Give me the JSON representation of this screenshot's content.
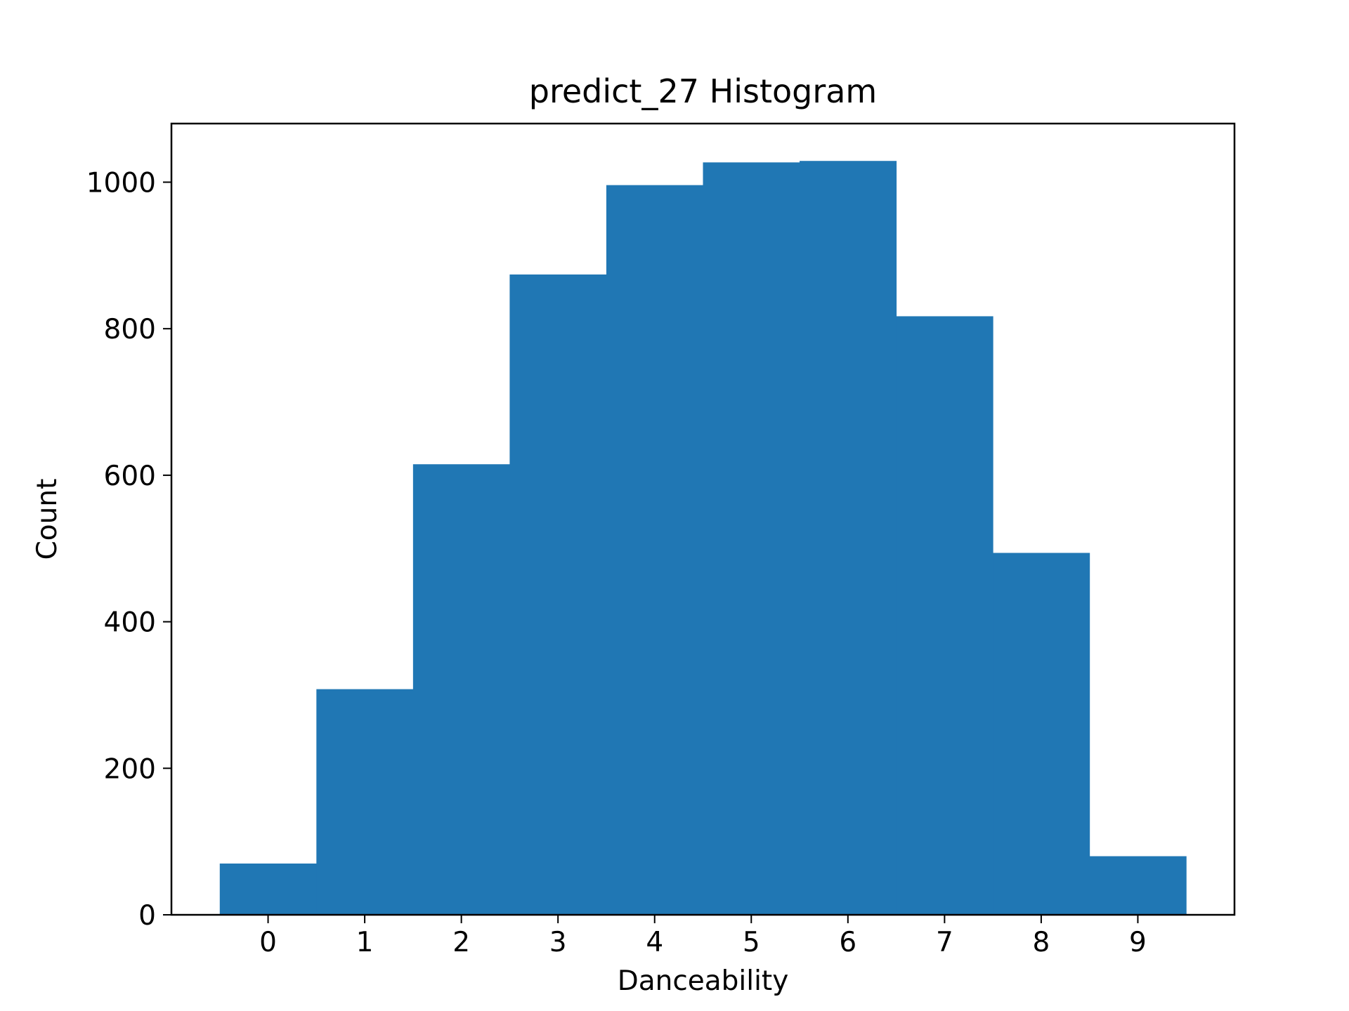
{
  "chart_data": {
    "type": "bar",
    "title": "predict_27 Histogram",
    "xlabel": "Danceability",
    "ylabel": "Count",
    "categories": [
      "0",
      "1",
      "2",
      "3",
      "4",
      "5",
      "6",
      "7",
      "8",
      "9"
    ],
    "x": [
      0,
      1,
      2,
      3,
      4,
      5,
      6,
      7,
      8,
      9
    ],
    "values": [
      70,
      308,
      615,
      874,
      996,
      1027,
      1029,
      817,
      494,
      80
    ],
    "bar_width": 1,
    "xlim": [
      -1.0,
      10.0
    ],
    "ylim": [
      0,
      1080
    ],
    "yticks": [
      0,
      200,
      400,
      600,
      800,
      1000
    ],
    "xticks": [
      0,
      1,
      2,
      3,
      4,
      5,
      6,
      7,
      8,
      9
    ],
    "grid": false,
    "legend": "none",
    "colors": {
      "bar": "#2077b4",
      "axes": "#000000",
      "background": "#ffffff"
    }
  }
}
